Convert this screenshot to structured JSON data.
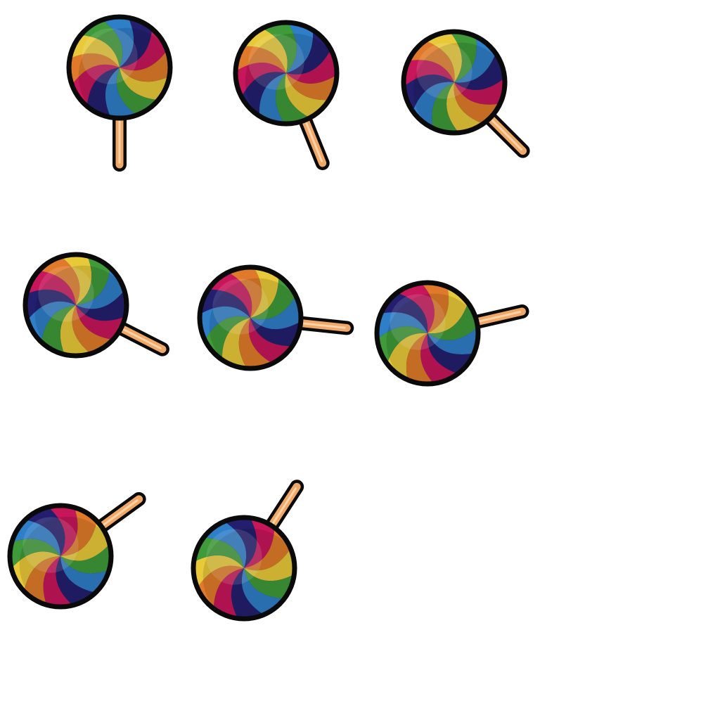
{
  "sprite_sheet": {
    "subject": "lollipop",
    "frame_count": 8,
    "frames": [
      {
        "index": 1,
        "stick_angle_deg": 90
      },
      {
        "index": 2,
        "stick_angle_deg": 68
      },
      {
        "index": 3,
        "stick_angle_deg": 45
      },
      {
        "index": 4,
        "stick_angle_deg": 27
      },
      {
        "index": 5,
        "stick_angle_deg": 6
      },
      {
        "index": 6,
        "stick_angle_deg": -13
      },
      {
        "index": 7,
        "stick_angle_deg": -36
      },
      {
        "index": 8,
        "stick_angle_deg": -57
      }
    ]
  },
  "colors": {
    "background": "#ffffff",
    "outline": "#0a0a0a",
    "stick": "#f0a868",
    "stick_highlight": "#fbd7ae",
    "swirl": [
      "#e8c93a",
      "#3f9a3a",
      "#2f7ec8",
      "#231f6e",
      "#c8165a",
      "#e07a2a"
    ]
  }
}
